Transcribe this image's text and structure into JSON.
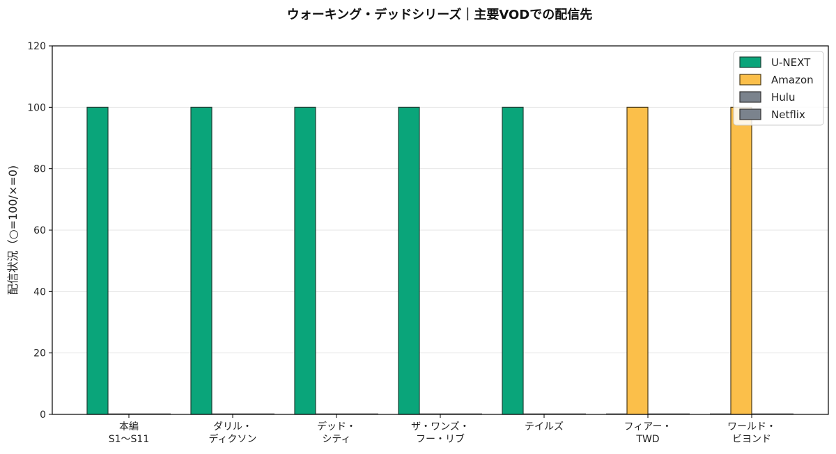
{
  "chart_data": {
    "type": "bar",
    "title": "ウォーキング・デッドシリーズ｜主要VODでの配信先",
    "ylabel": "配信状況（○=100/×=0)",
    "xlabel": "",
    "ylim": [
      0,
      120
    ],
    "yticks": [
      0,
      20,
      40,
      60,
      80,
      100,
      120
    ],
    "grid": true,
    "legend_position": "top-right",
    "categories": [
      [
        "本編",
        "S1〜S11"
      ],
      [
        "ダリル・",
        "ディクソン"
      ],
      [
        "デッド・",
        "シティ"
      ],
      [
        "ザ・ワンズ・",
        "フー・リブ"
      ],
      [
        "テイルズ"
      ],
      [
        "フィアー・",
        "TWD"
      ],
      [
        "ワールド・",
        "ビヨンド"
      ]
    ],
    "series": [
      {
        "name": "U-NEXT",
        "color": "#0aa57a",
        "values": [
          100,
          100,
          100,
          100,
          100,
          0,
          0
        ]
      },
      {
        "name": "Amazon",
        "color": "#fbbf4a",
        "values": [
          0,
          0,
          0,
          0,
          0,
          100,
          100
        ]
      },
      {
        "name": "Hulu",
        "color": "#7b838d",
        "values": [
          0,
          0,
          0,
          0,
          0,
          0,
          0
        ]
      },
      {
        "name": "Netflix",
        "color": "#7b838d",
        "values": [
          0,
          0,
          0,
          0,
          0,
          0,
          0
        ]
      }
    ]
  }
}
